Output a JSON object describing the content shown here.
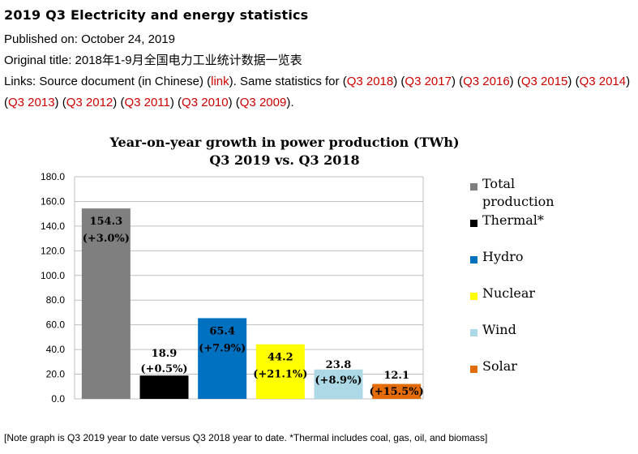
{
  "page": {
    "heading": "2019 Q3 Electricity and energy statistics",
    "published": "Published on: October 24, 2019",
    "original_title": "Original title: 2018年1-9月全国电力工业统计数据一览表",
    "links_prefix": "Links: Source document (in Chinese) (",
    "source_link": "link",
    "links_mid": "). Same statistics for ",
    "year_links": [
      "Q3 2018",
      "Q3 2017",
      "Q3 2016",
      "Q3 2015",
      "Q3 2014",
      "Q3 2013",
      "Q3 2012",
      "Q3 2011",
      "Q3 2010",
      "Q3 2009"
    ],
    "links_suffix": ".",
    "note": "[Note graph is Q3 2019 year to date versus Q3 2018 year to date. *Thermal includes coal, gas, oil, and biomass]"
  },
  "chart_data": {
    "type": "bar",
    "title": "Year-on-year growth in power production (TWh)",
    "subtitle": "Q3 2019 vs. Q3 2018",
    "categories": [
      "Total production",
      "Thermal*",
      "Hydro",
      "Nuclear",
      "Wind",
      "Solar"
    ],
    "values": [
      154.3,
      18.9,
      65.4,
      44.2,
      23.8,
      12.1
    ],
    "growth_labels": [
      "(+3.0%)",
      "(+0.5%)",
      "(+7.9%)",
      "(+21.1%)",
      "(+8.9%)",
      "(+15.5%)"
    ],
    "value_labels": [
      "154.3",
      "18.9",
      "65.4",
      "44.2",
      "23.8",
      "12.1"
    ],
    "colors": [
      "#7f7f7f",
      "#000000",
      "#0070c0",
      "#ffff00",
      "#add8e6",
      "#e36c09"
    ],
    "ylim": [
      0,
      180
    ],
    "yticks": [
      "0.0",
      "20.0",
      "40.0",
      "60.0",
      "80.0",
      "100.0",
      "120.0",
      "140.0",
      "160.0",
      "180.0"
    ],
    "grid": true,
    "legend": "right",
    "legend_entries": [
      "Total production",
      "Thermal*",
      "Hydro",
      "Nuclear",
      "Wind",
      "Solar"
    ]
  }
}
